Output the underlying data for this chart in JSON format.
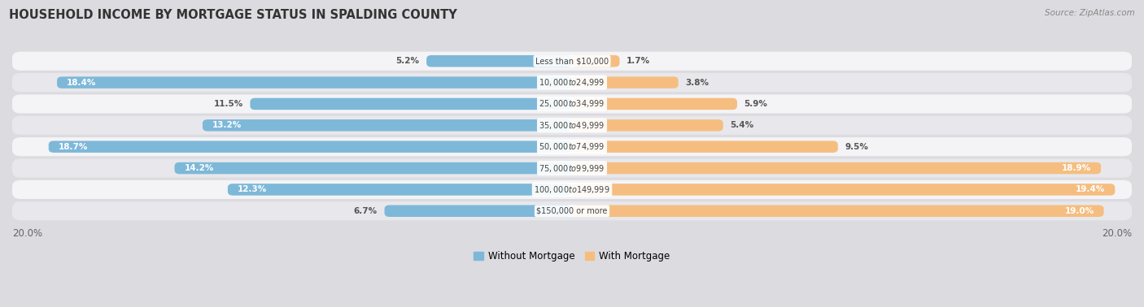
{
  "title": "HOUSEHOLD INCOME BY MORTGAGE STATUS IN SPALDING COUNTY",
  "source": "Source: ZipAtlas.com",
  "categories": [
    "Less than $10,000",
    "$10,000 to $24,999",
    "$25,000 to $34,999",
    "$35,000 to $49,999",
    "$50,000 to $74,999",
    "$75,000 to $99,999",
    "$100,000 to $149,999",
    "$150,000 or more"
  ],
  "without_mortgage": [
    5.2,
    18.4,
    11.5,
    13.2,
    18.7,
    14.2,
    12.3,
    6.7
  ],
  "with_mortgage": [
    1.7,
    3.8,
    5.9,
    5.4,
    9.5,
    18.9,
    19.4,
    19.0
  ],
  "color_without": "#7EB8D9",
  "color_with": "#F5BE80",
  "xlim": 20.0,
  "axis_label_left": "20.0%",
  "axis_label_right": "20.0%",
  "legend_without": "Without Mortgage",
  "legend_with": "With Mortgage",
  "row_bg_odd": "#f4f4f6",
  "row_bg_even": "#e8e8ec",
  "fig_bg": "#dcdce0"
}
